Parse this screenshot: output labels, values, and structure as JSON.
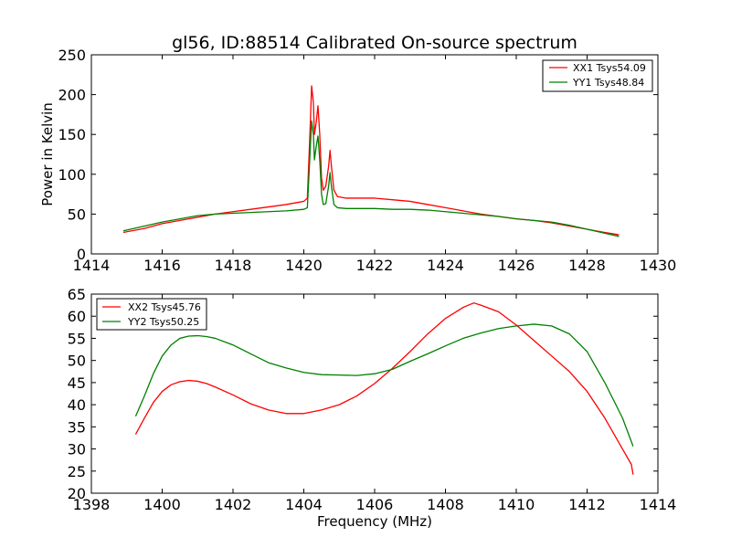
{
  "chart_data": [
    {
      "type": "line",
      "title": "gl56, ID:88514 Calibrated On-source spectrum",
      "xlabel": "",
      "ylabel": "Power in Kelvin",
      "xlim": [
        1414,
        1430
      ],
      "ylim": [
        0,
        250
      ],
      "xticks": [
        1414,
        1416,
        1418,
        1420,
        1422,
        1424,
        1426,
        1428,
        1430
      ],
      "yticks": [
        0,
        50,
        100,
        150,
        200,
        250
      ],
      "legend_position": "top-right",
      "grid": false,
      "series": [
        {
          "name": "XX1 Tsys54.09",
          "color": "#ff0000",
          "points": [
            [
              1414.9,
              27
            ],
            [
              1415.5,
              32
            ],
            [
              1416,
              38
            ],
            [
              1416.5,
              42
            ],
            [
              1417,
              46
            ],
            [
              1417.5,
              50
            ],
            [
              1418,
              53
            ],
            [
              1418.5,
              56
            ],
            [
              1419,
              59
            ],
            [
              1419.5,
              62
            ],
            [
              1420,
              66
            ],
            [
              1420.1,
              70
            ],
            [
              1420.18,
              160
            ],
            [
              1420.22,
              211
            ],
            [
              1420.27,
              190
            ],
            [
              1420.3,
              150
            ],
            [
              1420.35,
              165
            ],
            [
              1420.4,
              186
            ],
            [
              1420.45,
              150
            ],
            [
              1420.5,
              95
            ],
            [
              1420.55,
              80
            ],
            [
              1420.62,
              85
            ],
            [
              1420.7,
              110
            ],
            [
              1420.74,
              130
            ],
            [
              1420.78,
              110
            ],
            [
              1420.85,
              80
            ],
            [
              1420.95,
              72
            ],
            [
              1421.2,
              70
            ],
            [
              1422,
              70
            ],
            [
              1422.5,
              68
            ],
            [
              1423,
              66
            ],
            [
              1423.5,
              62
            ],
            [
              1424,
              58
            ],
            [
              1424.5,
              54
            ],
            [
              1425,
              50
            ],
            [
              1425.5,
              47
            ],
            [
              1426,
              44
            ],
            [
              1426.5,
              42
            ],
            [
              1427,
              39
            ],
            [
              1427.5,
              35
            ],
            [
              1428,
              31
            ],
            [
              1428.5,
              27
            ],
            [
              1428.9,
              24
            ]
          ]
        },
        {
          "name": "YY1 Tsys48.84",
          "color": "#008000",
          "points": [
            [
              1414.9,
              29
            ],
            [
              1415.5,
              35
            ],
            [
              1416,
              40
            ],
            [
              1416.5,
              44
            ],
            [
              1417,
              48
            ],
            [
              1417.5,
              50
            ],
            [
              1418,
              51
            ],
            [
              1418.5,
              52
            ],
            [
              1419,
              53
            ],
            [
              1419.5,
              54
            ],
            [
              1420,
              56
            ],
            [
              1420.1,
              58
            ],
            [
              1420.18,
              130
            ],
            [
              1420.22,
              167
            ],
            [
              1420.27,
              150
            ],
            [
              1420.3,
              118
            ],
            [
              1420.35,
              135
            ],
            [
              1420.4,
              148
            ],
            [
              1420.45,
              118
            ],
            [
              1420.5,
              75
            ],
            [
              1420.55,
              62
            ],
            [
              1420.62,
              63
            ],
            [
              1420.7,
              85
            ],
            [
              1420.74,
              102
            ],
            [
              1420.78,
              85
            ],
            [
              1420.85,
              62
            ],
            [
              1420.95,
              58
            ],
            [
              1421.2,
              57
            ],
            [
              1422,
              57
            ],
            [
              1422.5,
              56
            ],
            [
              1423,
              56
            ],
            [
              1423.5,
              55
            ],
            [
              1424,
              53
            ],
            [
              1424.5,
              51
            ],
            [
              1425,
              49
            ],
            [
              1425.5,
              47
            ],
            [
              1426,
              44
            ],
            [
              1426.5,
              42
            ],
            [
              1427,
              40
            ],
            [
              1427.5,
              36
            ],
            [
              1428,
              31
            ],
            [
              1428.5,
              26
            ],
            [
              1428.9,
              22
            ]
          ]
        }
      ]
    },
    {
      "type": "line",
      "title": "",
      "xlabel": "Frequency (MHz)",
      "ylabel": "",
      "xlim": [
        1398,
        1414
      ],
      "ylim": [
        20,
        65
      ],
      "xticks": [
        1398,
        1400,
        1402,
        1404,
        1406,
        1408,
        1410,
        1412,
        1414
      ],
      "yticks": [
        20,
        25,
        30,
        35,
        40,
        45,
        50,
        55,
        60,
        65
      ],
      "legend_position": "top-left",
      "grid": false,
      "series": [
        {
          "name": "XX2 Tsys45.76",
          "color": "#ff0000",
          "points": [
            [
              1399.25,
              33.3
            ],
            [
              1399.5,
              37
            ],
            [
              1399.75,
              40.5
            ],
            [
              1400,
              43
            ],
            [
              1400.25,
              44.5
            ],
            [
              1400.5,
              45.2
            ],
            [
              1400.75,
              45.5
            ],
            [
              1401,
              45.3
            ],
            [
              1401.25,
              44.8
            ],
            [
              1401.5,
              44
            ],
            [
              1402,
              42.2
            ],
            [
              1402.5,
              40.2
            ],
            [
              1403,
              38.8
            ],
            [
              1403.5,
              38
            ],
            [
              1404,
              38
            ],
            [
              1404.5,
              38.8
            ],
            [
              1405,
              40
            ],
            [
              1405.5,
              42
            ],
            [
              1406,
              44.8
            ],
            [
              1406.5,
              48.2
            ],
            [
              1407,
              52
            ],
            [
              1407.5,
              56
            ],
            [
              1408,
              59.5
            ],
            [
              1408.5,
              62
            ],
            [
              1408.8,
              63
            ],
            [
              1409,
              62.5
            ],
            [
              1409.5,
              61
            ],
            [
              1410,
              58
            ],
            [
              1410.5,
              54.5
            ],
            [
              1411,
              51
            ],
            [
              1411.5,
              47.5
            ],
            [
              1412,
              43
            ],
            [
              1412.5,
              37
            ],
            [
              1413,
              30
            ],
            [
              1413.25,
              26.5
            ],
            [
              1413.3,
              24.2
            ]
          ]
        },
        {
          "name": "YY2 Tsys50.25",
          "color": "#008000",
          "points": [
            [
              1399.25,
              37.4
            ],
            [
              1399.5,
              42
            ],
            [
              1399.75,
              47
            ],
            [
              1400,
              51
            ],
            [
              1400.25,
              53.5
            ],
            [
              1400.5,
              55
            ],
            [
              1400.75,
              55.5
            ],
            [
              1401,
              55.6
            ],
            [
              1401.25,
              55.4
            ],
            [
              1401.5,
              55
            ],
            [
              1402,
              53.5
            ],
            [
              1402.5,
              51.5
            ],
            [
              1403,
              49.5
            ],
            [
              1403.5,
              48.3
            ],
            [
              1404,
              47.3
            ],
            [
              1404.5,
              46.8
            ],
            [
              1405,
              46.7
            ],
            [
              1405.5,
              46.6
            ],
            [
              1406,
              47
            ],
            [
              1406.5,
              48
            ],
            [
              1407,
              49.8
            ],
            [
              1407.5,
              51.5
            ],
            [
              1408,
              53.3
            ],
            [
              1408.5,
              55
            ],
            [
              1409,
              56.2
            ],
            [
              1409.5,
              57.2
            ],
            [
              1410,
              57.8
            ],
            [
              1410.5,
              58.2
            ],
            [
              1411,
              57.8
            ],
            [
              1411.5,
              56
            ],
            [
              1412,
              52
            ],
            [
              1412.5,
              45
            ],
            [
              1413,
              37
            ],
            [
              1413.3,
              30.6
            ]
          ]
        }
      ]
    }
  ]
}
